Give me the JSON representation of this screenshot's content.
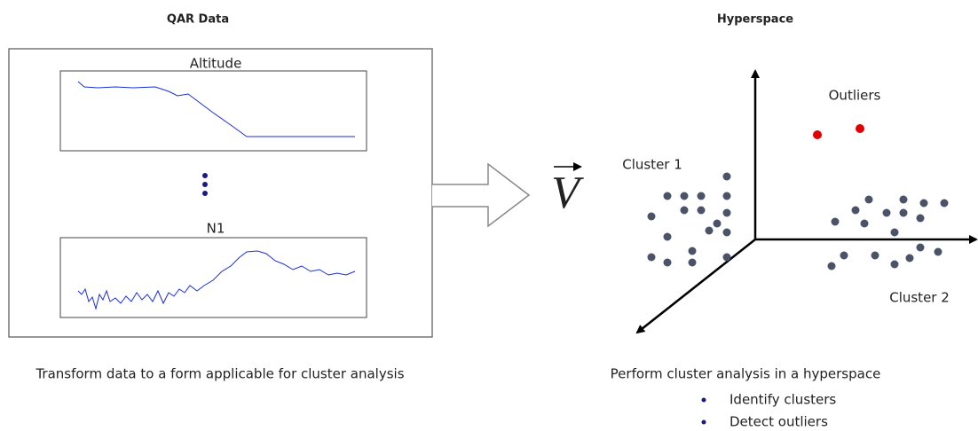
{
  "left": {
    "title": "QAR Data",
    "plots": [
      {
        "title": "Altitude"
      },
      {
        "title": "N1"
      }
    ],
    "caption": "Transform data to a form applicable for cluster analysis"
  },
  "middle": {
    "symbol": "V"
  },
  "right": {
    "title": "Hyperspace",
    "labels": {
      "outliers": "Outliers",
      "cluster1": "Cluster 1",
      "cluster2": "Cluster 2"
    },
    "caption": "Perform cluster analysis in a hyperspace",
    "bullets": [
      "Identify clusters",
      "Detect outliers"
    ]
  }
}
